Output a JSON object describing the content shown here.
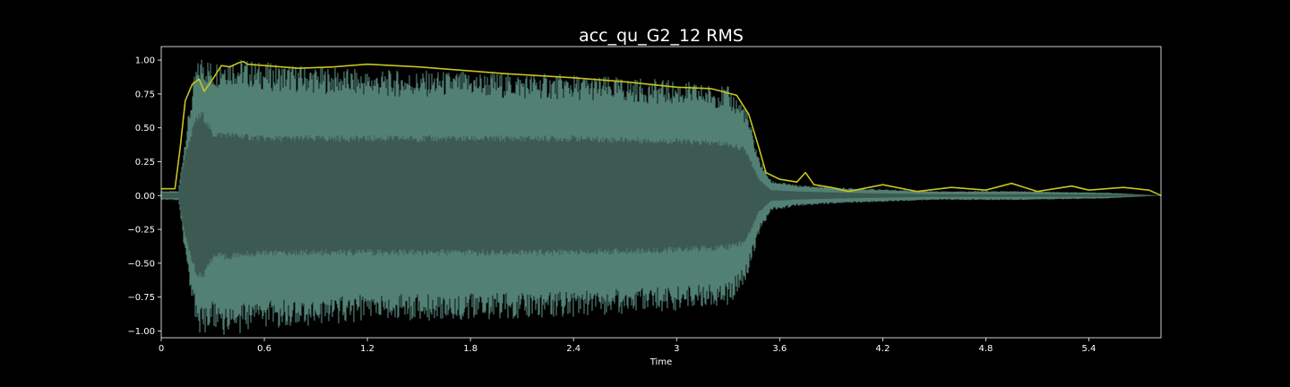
{
  "chart_data": {
    "type": "area",
    "title": "acc_qu_G2_12 RMS",
    "xlabel": "Time",
    "ylabel": "",
    "xlim": [
      0,
      5.82
    ],
    "ylim": [
      -1.05,
      1.1
    ],
    "xticks": [
      0,
      0.6,
      1.2,
      1.8,
      2.4,
      3,
      3.6,
      4.2,
      4.8,
      5.4
    ],
    "xtick_labels": [
      "0",
      "0.6",
      "1.2",
      "1.8",
      "2.4",
      "3",
      "3.6",
      "4.2",
      "4.8",
      "5.4"
    ],
    "yticks": [
      1.0,
      0.75,
      0.5,
      0.25,
      0.0,
      -0.25,
      -0.5,
      -0.75,
      -1.0
    ],
    "ytick_labels": [
      "1.00",
      "0.75",
      "0.50",
      "0.25",
      "0.00",
      "−0.25",
      "−0.50",
      "−0.75",
      "−1.00"
    ],
    "grid": false,
    "background": "#000000",
    "series": [
      {
        "kind": "waveform",
        "color": "#5a8d80",
        "inner_color": "#3b564f",
        "x": [
          0,
          0.1,
          0.14,
          0.2,
          0.24,
          0.3,
          0.36,
          0.6,
          1.2,
          1.8,
          2.4,
          3.0,
          3.3,
          3.4,
          3.48,
          3.55,
          3.7,
          4.0,
          4.5,
          5.0,
          5.5,
          5.82
        ],
        "envelope": [
          0.03,
          0.03,
          0.4,
          0.85,
          0.95,
          0.88,
          0.93,
          0.88,
          0.83,
          0.82,
          0.8,
          0.76,
          0.72,
          0.6,
          0.25,
          0.1,
          0.07,
          0.05,
          0.03,
          0.03,
          0.02,
          0.0
        ],
        "inner": [
          0.02,
          0.02,
          0.3,
          0.55,
          0.6,
          0.45,
          0.45,
          0.42,
          0.42,
          0.42,
          0.42,
          0.4,
          0.38,
          0.34,
          0.12,
          0.04,
          0.03,
          0.02,
          0.01,
          0.01,
          0.01,
          0.0
        ]
      },
      {
        "kind": "rms",
        "color": "#c8c41e",
        "x": [
          0,
          0.08,
          0.11,
          0.14,
          0.18,
          0.22,
          0.25,
          0.3,
          0.35,
          0.4,
          0.45,
          0.48,
          0.5,
          0.6,
          0.8,
          1.0,
          1.2,
          1.5,
          1.8,
          2.0,
          2.4,
          2.7,
          3.0,
          3.2,
          3.35,
          3.42,
          3.48,
          3.52,
          3.6,
          3.7,
          3.75,
          3.8,
          3.9,
          4.0,
          4.2,
          4.4,
          4.6,
          4.8,
          4.95,
          5.1,
          5.3,
          5.4,
          5.6,
          5.75,
          5.82
        ],
        "values": [
          0.05,
          0.05,
          0.35,
          0.7,
          0.82,
          0.86,
          0.77,
          0.86,
          0.96,
          0.95,
          0.98,
          0.99,
          0.97,
          0.96,
          0.94,
          0.95,
          0.97,
          0.95,
          0.92,
          0.9,
          0.87,
          0.84,
          0.8,
          0.79,
          0.74,
          0.6,
          0.35,
          0.17,
          0.12,
          0.1,
          0.17,
          0.08,
          0.06,
          0.03,
          0.08,
          0.03,
          0.06,
          0.04,
          0.09,
          0.03,
          0.07,
          0.04,
          0.06,
          0.04,
          0.0
        ]
      }
    ]
  }
}
